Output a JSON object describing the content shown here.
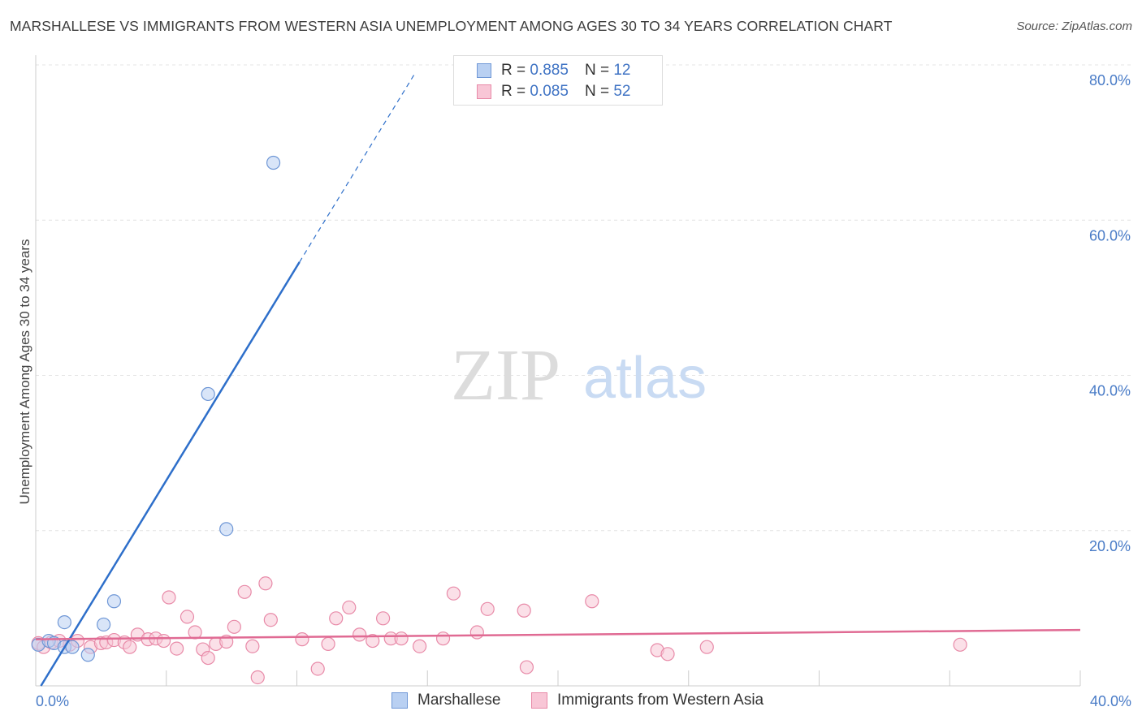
{
  "title": "MARSHALLESE VS IMMIGRANTS FROM WESTERN ASIA UNEMPLOYMENT AMONG AGES 30 TO 34 YEARS CORRELATION CHART",
  "source": "Source: ZipAtlas.com",
  "watermark": {
    "zip": "ZIP",
    "atlas": "atlas"
  },
  "legend": {
    "rows": [
      {
        "r_label": "R =",
        "r_value": "0.885",
        "n_label": "N =",
        "n_value": "12"
      },
      {
        "r_label": "R =",
        "r_value": "0.085",
        "n_label": "N =",
        "n_value": "52"
      }
    ]
  },
  "colors": {
    "blue_fill": "#b9d0f2",
    "blue_stroke": "#6f97d6",
    "blue_line": "#2e6fca",
    "pink_fill": "#f8c6d6",
    "pink_stroke": "#e88aa8",
    "pink_line": "#e06a93",
    "grid": "#e4e4e4",
    "tick_text": "#4a7cc7"
  },
  "chart_data": {
    "type": "scatter",
    "title": "MARSHALLESE VS IMMIGRANTS FROM WESTERN ASIA UNEMPLOYMENT AMONG AGES 30 TO 34 YEARS CORRELATION CHART",
    "xlabel": "",
    "ylabel": "Unemployment Among Ages 30 to 34 years",
    "xlim": [
      0,
      40
    ],
    "ylim": [
      0,
      80
    ],
    "x_tick_labels": [
      "0.0%",
      "40.0%"
    ],
    "y_ticks": [
      20,
      40,
      60,
      80
    ],
    "y_tick_labels": [
      "20.0%",
      "40.0%",
      "60.0%",
      "80.0%"
    ],
    "series": [
      {
        "name": "Marshallese",
        "color": "blue",
        "r": 0.885,
        "n": 12,
        "points": [
          [
            0.1,
            5.3
          ],
          [
            0.5,
            5.8
          ],
          [
            0.7,
            5.5
          ],
          [
            1.1,
            5.0
          ],
          [
            1.4,
            5.0
          ],
          [
            2.0,
            4.0
          ],
          [
            1.1,
            8.2
          ],
          [
            2.6,
            7.9
          ],
          [
            3.0,
            10.9
          ],
          [
            7.3,
            20.2
          ],
          [
            6.6,
            37.6
          ],
          [
            9.1,
            67.4
          ]
        ],
        "trend": {
          "x0": 0.2,
          "y0": 0.0,
          "x1": 10.1,
          "y1": 54.6,
          "dash_x1": 14.5,
          "dash_y1": 78.8
        }
      },
      {
        "name": "Immigrants from Western Asia",
        "color": "pink",
        "r": 0.085,
        "n": 52,
        "points": [
          [
            0.1,
            5.5
          ],
          [
            0.3,
            5.0
          ],
          [
            0.6,
            5.6
          ],
          [
            0.9,
            5.8
          ],
          [
            1.3,
            5.3
          ],
          [
            1.6,
            5.8
          ],
          [
            2.1,
            5.0
          ],
          [
            2.5,
            5.5
          ],
          [
            2.7,
            5.6
          ],
          [
            3.0,
            5.9
          ],
          [
            3.4,
            5.6
          ],
          [
            3.6,
            5.0
          ],
          [
            3.9,
            6.6
          ],
          [
            4.3,
            6.0
          ],
          [
            4.6,
            6.1
          ],
          [
            4.9,
            5.8
          ],
          [
            5.1,
            11.4
          ],
          [
            5.4,
            4.8
          ],
          [
            5.8,
            8.9
          ],
          [
            6.1,
            6.9
          ],
          [
            6.4,
            4.7
          ],
          [
            6.6,
            3.6
          ],
          [
            6.9,
            5.4
          ],
          [
            7.3,
            5.7
          ],
          [
            7.6,
            7.6
          ],
          [
            8.0,
            12.1
          ],
          [
            8.3,
            5.1
          ],
          [
            8.5,
            1.1
          ],
          [
            8.8,
            13.2
          ],
          [
            9.0,
            8.5
          ],
          [
            10.2,
            6.0
          ],
          [
            10.8,
            2.2
          ],
          [
            11.2,
            5.4
          ],
          [
            11.5,
            8.7
          ],
          [
            12.0,
            10.1
          ],
          [
            12.4,
            6.6
          ],
          [
            12.9,
            5.8
          ],
          [
            13.3,
            8.7
          ],
          [
            13.6,
            6.1
          ],
          [
            14.0,
            6.1
          ],
          [
            14.7,
            5.1
          ],
          [
            15.6,
            6.1
          ],
          [
            16.0,
            11.9
          ],
          [
            16.9,
            6.9
          ],
          [
            17.3,
            9.9
          ],
          [
            18.7,
            9.7
          ],
          [
            18.8,
            2.4
          ],
          [
            21.3,
            10.9
          ],
          [
            23.8,
            4.6
          ],
          [
            24.2,
            4.1
          ],
          [
            25.7,
            5.0
          ],
          [
            35.4,
            5.3
          ]
        ],
        "trend": {
          "x0": 0.0,
          "y0": 6.0,
          "x1": 40.0,
          "y1": 7.2
        }
      }
    ]
  },
  "bottom_legend": [
    {
      "label": "Marshallese"
    },
    {
      "label": "Immigrants from Western Asia"
    }
  ]
}
